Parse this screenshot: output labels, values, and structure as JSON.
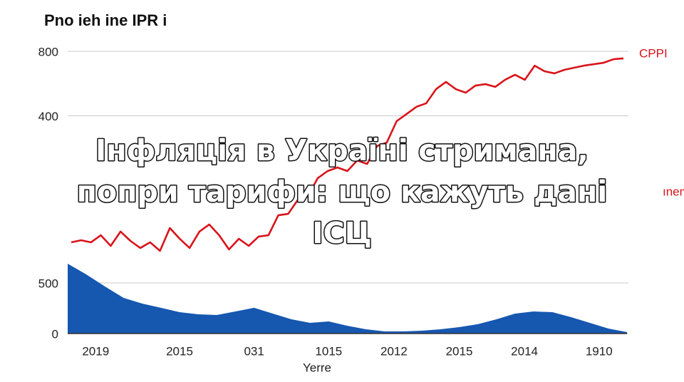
{
  "chart_data": [
    {
      "type": "line",
      "title": "Pno ieh ine IPR i",
      "annotation": "ıneme",
      "ylim": [
        -440,
        800
      ],
      "yticks": [
        400,
        800
      ],
      "grid": true,
      "series": [
        {
          "name": "CPPI",
          "color": "#d9141b",
          "values": [
            -387,
            -374,
            -387,
            -343,
            -409,
            -320,
            -378,
            -422,
            -387,
            -440,
            -298,
            -365,
            -422,
            -320,
            -276,
            -343,
            -431,
            -365,
            -409,
            -351,
            -343,
            -219,
            -210,
            -121,
            -99,
            12,
            56,
            78,
            56,
            122,
            100,
            211,
            233,
            366,
            410,
            455,
            477,
            565,
            610,
            565,
            543,
            587,
            596,
            579,
            623,
            654,
            623,
            711,
            676,
            663,
            685,
            698,
            711,
            720,
            729,
            751,
            756
          ]
        }
      ]
    },
    {
      "type": "area",
      "x_label": "Yerre",
      "color": "#1657b0",
      "ylim": [
        0,
        700
      ],
      "yticks": [
        0,
        500
      ],
      "grid": true,
      "xlim": [
        0,
        30
      ],
      "xticks": [
        {
          "value": 1.5,
          "label": "2019"
        },
        {
          "value": 6,
          "label": "2015"
        },
        {
          "value": 10,
          "label": "031"
        },
        {
          "value": 14,
          "label": "1015"
        },
        {
          "value": 17.5,
          "label": "2012"
        },
        {
          "value": 21,
          "label": "2015"
        },
        {
          "value": 24.5,
          "label": "2014"
        },
        {
          "value": 28.5,
          "label": "1910"
        }
      ],
      "values": [
        690,
        584,
        465,
        352,
        296,
        254,
        211,
        190,
        183,
        218,
        254,
        197,
        141,
        106,
        120,
        77,
        42,
        21,
        21,
        28,
        42,
        63,
        92,
        141,
        197,
        218,
        211,
        162,
        106,
        49,
        14
      ]
    }
  ],
  "headline": [
    "Інфляція в Україні стримана,",
    "попри тарифи: що кажуть дані",
    "ІСЦ"
  ]
}
